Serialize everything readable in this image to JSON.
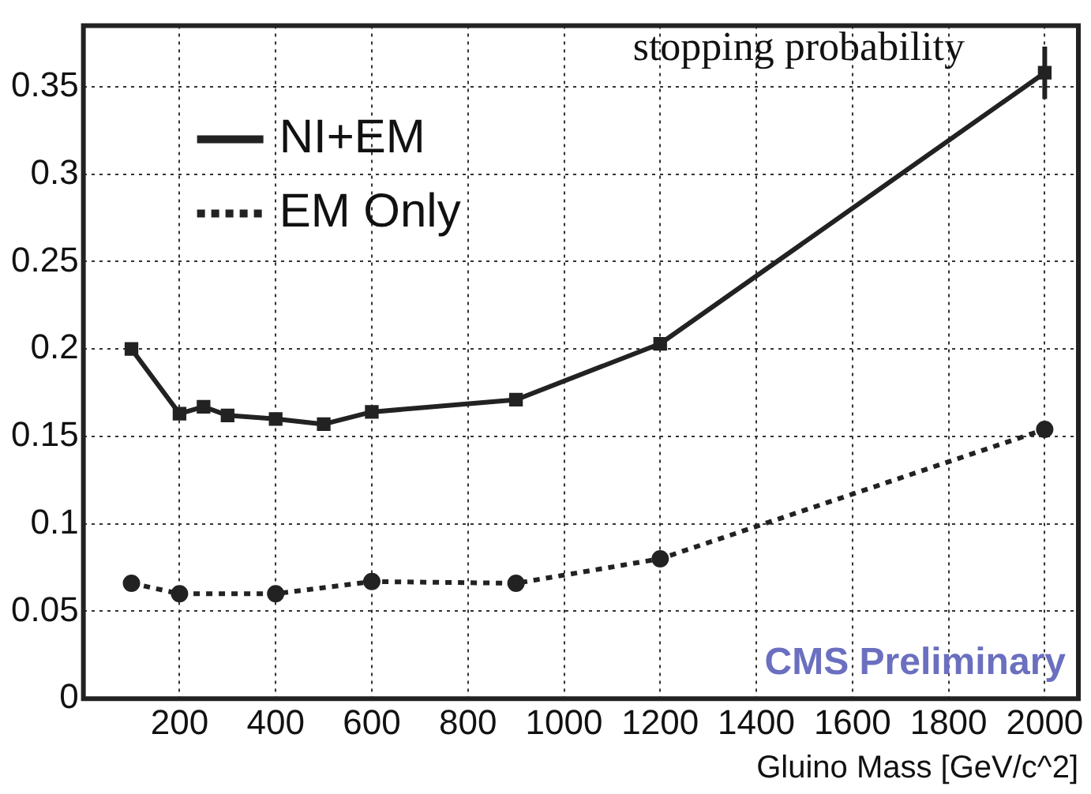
{
  "chart_data": {
    "type": "line",
    "title": "stopping probability",
    "xlabel": "Gluino Mass [GeV/c^2]",
    "xlim": [
      0,
      2070
    ],
    "xticks": [
      200,
      400,
      600,
      800,
      1000,
      1200,
      1400,
      1600,
      1800,
      2000
    ],
    "ylim": [
      0,
      0.385
    ],
    "yticks": [
      0,
      0.05,
      0.1,
      0.15,
      0.2,
      0.25,
      0.3,
      0.35
    ],
    "grid": true,
    "legend": "top left",
    "annotations": [
      "CMS Preliminary"
    ],
    "series": [
      {
        "name": "NI+EM",
        "color": "#222222",
        "marker": "square",
        "line_style": "solid",
        "x": [
          100,
          200,
          250,
          300,
          400,
          500,
          600,
          900,
          1200,
          2000
        ],
        "values": [
          0.2,
          0.163,
          0.167,
          0.162,
          0.16,
          0.157,
          0.164,
          0.171,
          0.203,
          0.358
        ],
        "errors": [
          null,
          null,
          null,
          null,
          null,
          null,
          null,
          null,
          null,
          0.015
        ]
      },
      {
        "name": "EM Only",
        "color": "#222222",
        "marker": "circle",
        "line_style": "dotted",
        "x": [
          100,
          200,
          400,
          600,
          900,
          1200,
          2000
        ],
        "values": [
          0.066,
          0.06,
          0.06,
          0.067,
          0.066,
          0.08,
          0.154
        ]
      }
    ]
  }
}
